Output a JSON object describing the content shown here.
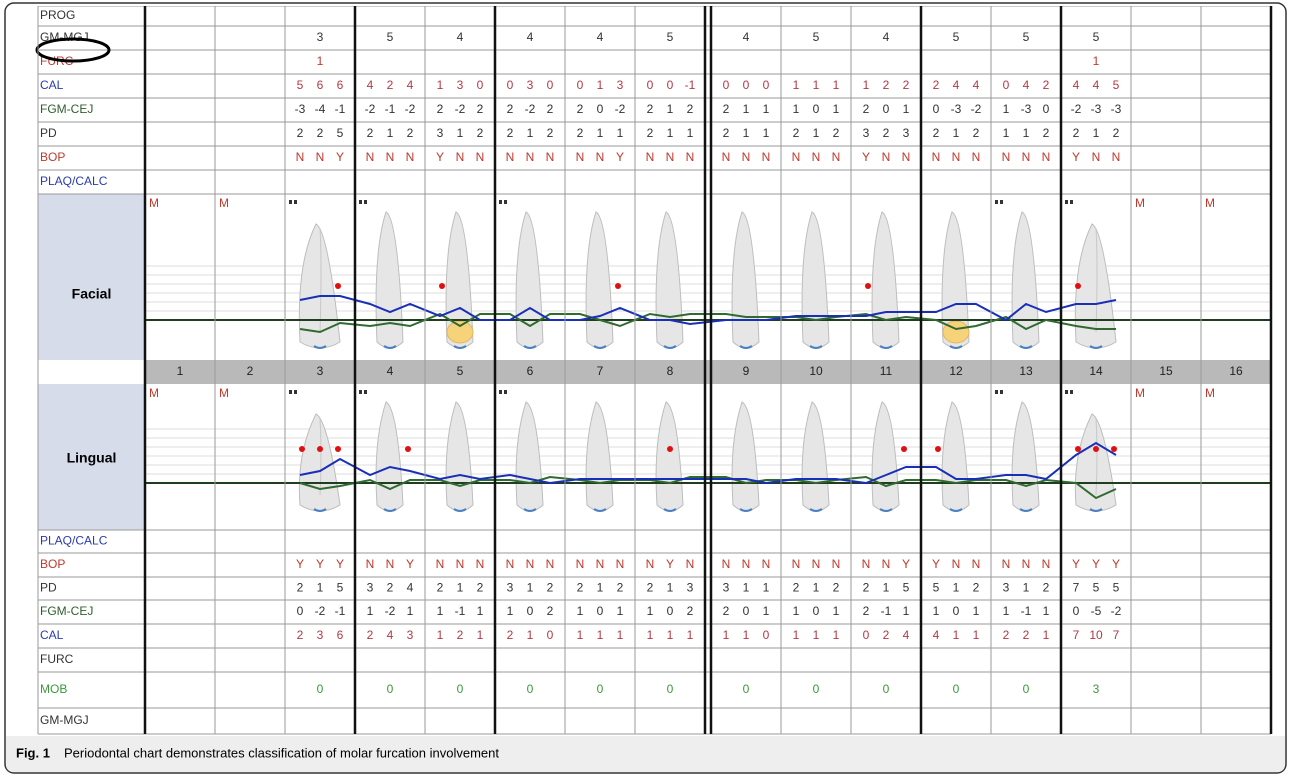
{
  "caption": {
    "label": "Fig. 1",
    "text": "Periodontal chart demonstrates classification of molar furcation involvement"
  },
  "tooth_numbers": [
    1,
    2,
    3,
    4,
    5,
    6,
    7,
    8,
    9,
    10,
    11,
    12,
    13,
    14,
    15,
    16
  ],
  "missing_marker": "M",
  "missing_teeth": [
    1,
    2,
    15,
    16
  ],
  "facial": {
    "label": "Facial"
  },
  "lingual": {
    "label": "Lingual"
  },
  "top_rows": [
    {
      "label": "PROG",
      "color": "#333333",
      "value_color": "#333333",
      "cells": [
        null,
        null,
        null,
        null,
        null,
        null,
        null,
        null,
        null,
        null,
        null,
        null,
        null,
        null,
        null,
        null
      ]
    },
    {
      "label": "GM-MGJ",
      "color": "#333333",
      "value_color": "#333333",
      "cells": [
        null,
        null,
        3,
        5,
        4,
        4,
        4,
        5,
        4,
        5,
        4,
        5,
        5,
        5,
        null,
        null
      ]
    },
    {
      "label": "FURC",
      "color": "#c0392b",
      "value_color": "#c0392b",
      "cells": [
        null,
        null,
        1,
        null,
        null,
        null,
        null,
        null,
        null,
        null,
        null,
        null,
        null,
        1,
        null,
        null
      ]
    },
    {
      "label": "CAL",
      "color": "#2b3bb0",
      "value_color": "#b03a48",
      "cells": [
        null,
        null,
        [
          5,
          6,
          6
        ],
        [
          4,
          2,
          4
        ],
        [
          1,
          3,
          0
        ],
        [
          0,
          3,
          0
        ],
        [
          0,
          1,
          3
        ],
        [
          0,
          0,
          -1
        ],
        [
          0,
          0,
          0
        ],
        [
          1,
          1,
          1
        ],
        [
          1,
          2,
          2
        ],
        [
          2,
          4,
          4
        ],
        [
          0,
          4,
          2
        ],
        [
          4,
          4,
          5
        ],
        null,
        null
      ]
    },
    {
      "label": "FGM-CEJ",
      "color": "#2f5e2f",
      "value_color": "#333333",
      "cells": [
        null,
        null,
        [
          -3,
          -4,
          -1
        ],
        [
          -2,
          -1,
          -2
        ],
        [
          2,
          -2,
          2
        ],
        [
          2,
          -2,
          2
        ],
        [
          2,
          0,
          -2
        ],
        [
          2,
          1,
          2
        ],
        [
          2,
          1,
          1
        ],
        [
          1,
          0,
          1
        ],
        [
          2,
          0,
          1
        ],
        [
          0,
          -3,
          -2
        ],
        [
          1,
          -3,
          0
        ],
        [
          -2,
          -3,
          -3
        ],
        null,
        null
      ]
    },
    {
      "label": "PD",
      "color": "#333333",
      "value_color": "#333333",
      "cells": [
        null,
        null,
        [
          2,
          2,
          5
        ],
        [
          2,
          1,
          2
        ],
        [
          3,
          1,
          2
        ],
        [
          2,
          1,
          2
        ],
        [
          2,
          1,
          1
        ],
        [
          2,
          1,
          1
        ],
        [
          2,
          1,
          1
        ],
        [
          2,
          1,
          2
        ],
        [
          3,
          2,
          3
        ],
        [
          2,
          1,
          2
        ],
        [
          1,
          1,
          2
        ],
        [
          2,
          1,
          2
        ],
        null,
        null
      ]
    },
    {
      "label": "BOP",
      "color": "#c0392b",
      "value_color": "#c0392b",
      "cells": [
        null,
        null,
        [
          "N",
          "N",
          "Y"
        ],
        [
          "N",
          "N",
          "N"
        ],
        [
          "Y",
          "N",
          "N"
        ],
        [
          "N",
          "N",
          "N"
        ],
        [
          "N",
          "N",
          "Y"
        ],
        [
          "N",
          "N",
          "N"
        ],
        [
          "N",
          "N",
          "N"
        ],
        [
          "N",
          "N",
          "N"
        ],
        [
          "Y",
          "N",
          "N"
        ],
        [
          "N",
          "N",
          "N"
        ],
        [
          "N",
          "N",
          "N"
        ],
        [
          "Y",
          "N",
          "N"
        ],
        null,
        null
      ]
    },
    {
      "label": "PLAQ/CALC",
      "color": "#2b3bb0",
      "value_color": "#333333",
      "cells": [
        null,
        null,
        null,
        null,
        null,
        null,
        null,
        null,
        null,
        null,
        null,
        null,
        null,
        null,
        null,
        null
      ]
    }
  ],
  "bottom_rows": [
    {
      "label": "PLAQ/CALC",
      "color": "#2b3bb0",
      "value_color": "#333333",
      "cells": [
        null,
        null,
        null,
        null,
        null,
        null,
        null,
        null,
        null,
        null,
        null,
        null,
        null,
        null,
        null,
        null
      ]
    },
    {
      "label": "BOP",
      "color": "#c0392b",
      "value_color": "#c0392b",
      "cells": [
        null,
        null,
        [
          "Y",
          "Y",
          "Y"
        ],
        [
          "N",
          "N",
          "Y"
        ],
        [
          "N",
          "N",
          "N"
        ],
        [
          "N",
          "N",
          "N"
        ],
        [
          "N",
          "N",
          "N"
        ],
        [
          "N",
          "Y",
          "N"
        ],
        [
          "N",
          "N",
          "N"
        ],
        [
          "N",
          "N",
          "N"
        ],
        [
          "N",
          "N",
          "Y"
        ],
        [
          "Y",
          "N",
          "N"
        ],
        [
          "N",
          "N",
          "N"
        ],
        [
          "Y",
          "Y",
          "Y"
        ],
        null,
        null
      ]
    },
    {
      "label": "PD",
      "color": "#333333",
      "value_color": "#333333",
      "cells": [
        null,
        null,
        [
          2,
          1,
          5
        ],
        [
          3,
          2,
          4
        ],
        [
          2,
          1,
          2
        ],
        [
          3,
          1,
          2
        ],
        [
          2,
          1,
          2
        ],
        [
          2,
          1,
          3
        ],
        [
          3,
          1,
          1
        ],
        [
          2,
          1,
          2
        ],
        [
          2,
          1,
          5
        ],
        [
          5,
          1,
          2
        ],
        [
          3,
          1,
          2
        ],
        [
          7,
          5,
          5
        ],
        null,
        null
      ]
    },
    {
      "label": "FGM-CEJ",
      "color": "#2f5e2f",
      "value_color": "#333333",
      "cells": [
        null,
        null,
        [
          0,
          -2,
          -1
        ],
        [
          1,
          -2,
          1
        ],
        [
          1,
          -1,
          1
        ],
        [
          1,
          0,
          2
        ],
        [
          1,
          0,
          1
        ],
        [
          1,
          0,
          2
        ],
        [
          2,
          0,
          1
        ],
        [
          1,
          0,
          1
        ],
        [
          2,
          -1,
          1
        ],
        [
          1,
          0,
          1
        ],
        [
          1,
          -1,
          1
        ],
        [
          0,
          -5,
          -2
        ],
        null,
        null
      ]
    },
    {
      "label": "CAL",
      "color": "#2b3bb0",
      "value_color": "#b03a48",
      "cells": [
        null,
        null,
        [
          2,
          3,
          6
        ],
        [
          2,
          4,
          3
        ],
        [
          1,
          2,
          1
        ],
        [
          2,
          1,
          0
        ],
        [
          1,
          1,
          1
        ],
        [
          1,
          1,
          1
        ],
        [
          1,
          1,
          0
        ],
        [
          1,
          1,
          1
        ],
        [
          0,
          2,
          4
        ],
        [
          4,
          1,
          1
        ],
        [
          2,
          2,
          1
        ],
        [
          7,
          10,
          7
        ],
        null,
        null
      ]
    },
    {
      "label": "FURC",
      "color": "#333333",
      "value_color": "#333333",
      "cells": [
        null,
        null,
        null,
        null,
        null,
        null,
        null,
        null,
        null,
        null,
        null,
        null,
        null,
        null,
        null,
        null
      ]
    },
    {
      "label": "MOB",
      "color": "#3a9a3a",
      "value_color": "#3a9a3a",
      "cells": [
        null,
        null,
        0,
        0,
        0,
        0,
        0,
        0,
        0,
        0,
        0,
        0,
        0,
        3,
        null,
        null
      ]
    },
    {
      "label": "GM-MGJ",
      "color": "#333333",
      "value_color": "#333333",
      "cells": [
        null,
        null,
        null,
        null,
        null,
        null,
        null,
        null,
        null,
        null,
        null,
        null,
        null,
        null,
        null,
        null
      ]
    }
  ]
}
